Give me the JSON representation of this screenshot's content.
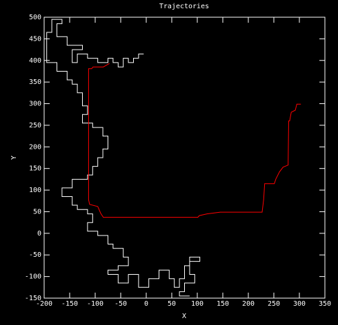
{
  "chart_data": {
    "type": "line",
    "title": "Trajectories",
    "x_label": "X",
    "y_label": "Y",
    "xlim": [
      -200,
      350
    ],
    "xticks": [
      -200,
      -150,
      -100,
      -50,
      0,
      50,
      100,
      150,
      200,
      250,
      300,
      350
    ],
    "ylim": [
      -150,
      500
    ],
    "yticks": [
      -150,
      -100,
      -50,
      0,
      50,
      100,
      150,
      200,
      250,
      300,
      350,
      400,
      450,
      500
    ],
    "series": [
      {
        "color": "#ffffff",
        "x": [
          -5,
          -15,
          -15,
          -25,
          -25,
          -35,
          -35,
          -45,
          -45,
          -55,
          -55,
          -65,
          -65,
          -75,
          -75,
          -95,
          -95,
          -115,
          -115,
          -135,
          -135,
          -145,
          -145,
          -125,
          -125,
          -155,
          -155,
          -175,
          -175,
          -165,
          -165,
          -185,
          -185,
          -195,
          -195,
          -175,
          -175,
          -155,
          -155,
          -145,
          -145,
          -135,
          -135,
          -125,
          -125,
          -115,
          -115,
          -125,
          -125,
          -105,
          -105,
          -85,
          -85,
          -75,
          -75,
          -85,
          -85,
          -95,
          -95,
          -105,
          -105,
          -115,
          -115,
          -145,
          -145,
          -165,
          -165,
          -145,
          -145,
          -135,
          -135,
          -115,
          -115,
          -105,
          -105,
          -115,
          -115,
          -95,
          -95,
          -75,
          -75,
          -65,
          -65,
          -45,
          -45,
          -35,
          -35,
          -55,
          -55,
          -75,
          -75,
          -55,
          -55,
          -35,
          -35,
          -15,
          -15,
          5,
          5,
          25,
          25,
          45,
          45,
          55,
          55,
          65,
          65,
          75,
          75,
          85,
          85,
          105,
          105,
          85,
          85,
          95,
          95,
          75,
          75,
          65,
          65,
          85
        ],
        "values": [
          415,
          415,
          405,
          405,
          395,
          395,
          405,
          405,
          385,
          385,
          395,
          395,
          405,
          405,
          395,
          395,
          405,
          405,
          415,
          415,
          395,
          395,
          425,
          425,
          435,
          435,
          455,
          455,
          485,
          485,
          495,
          495,
          465,
          465,
          395,
          395,
          375,
          375,
          355,
          355,
          345,
          345,
          325,
          325,
          295,
          295,
          275,
          275,
          255,
          255,
          245,
          245,
          225,
          225,
          195,
          195,
          175,
          175,
          155,
          155,
          135,
          135,
          125,
          125,
          105,
          105,
          85,
          85,
          65,
          65,
          55,
          55,
          45,
          45,
          25,
          25,
          5,
          5,
          -5,
          -5,
          -25,
          -25,
          -35,
          -35,
          -55,
          -55,
          -75,
          -75,
          -85,
          -85,
          -95,
          -95,
          -115,
          -115,
          -95,
          -95,
          -125,
          -125,
          -105,
          -105,
          -85,
          -85,
          -105,
          -105,
          -125,
          -125,
          -105,
          -105,
          -75,
          -75,
          -55,
          -55,
          -65,
          -65,
          -95,
          -95,
          -115,
          -115,
          -135,
          -135,
          -145,
          -145
        ]
      },
      {
        "color": "#ff0000",
        "x": [
          303,
          295,
          292,
          284,
          281,
          279,
          278,
          268,
          261,
          254,
          251,
          232,
          230,
          227,
          145,
          119,
          104,
          101,
          -84,
          -89,
          -95,
          -111,
          -113,
          -113,
          -107,
          -104,
          -84,
          -72
        ],
        "values": [
          299,
          299,
          285,
          280,
          260,
          260,
          158,
          153,
          142,
          126,
          115,
          115,
          78,
          49,
          49,
          45,
          41,
          37,
          37,
          46,
          62,
          67,
          78,
          381,
          381,
          385,
          385,
          393
        ]
      }
    ]
  }
}
